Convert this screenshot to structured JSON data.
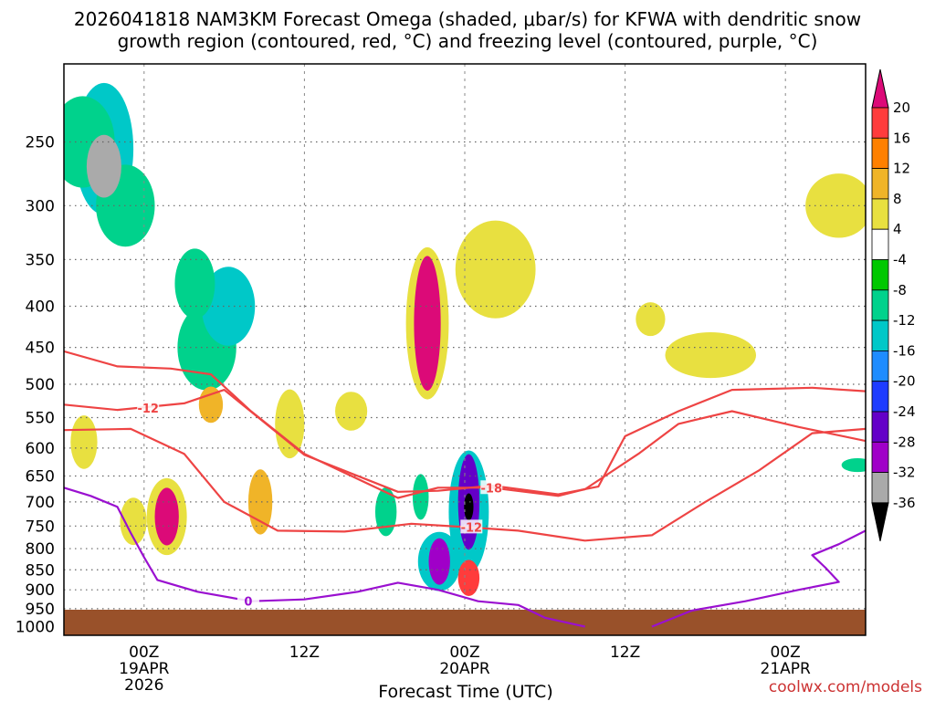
{
  "chart_data": {
    "type": "heatmap",
    "title_line1": "2026041818 NAM3KM Forecast Omega (shaded, μbar/s) for KFWA with dendritic snow",
    "title_line2": "growth region (contoured, red, °C) and freezing level (contoured, purple, °C)",
    "xlabel": "Forecast Time (UTC)",
    "credit": "coolwx.com/models",
    "x_range_hours": [
      -6,
      54
    ],
    "x_ticks": [
      {
        "hour": 0,
        "lines": [
          "00Z",
          "19APR",
          "2026"
        ]
      },
      {
        "hour": 12,
        "lines": [
          "12Z"
        ]
      },
      {
        "hour": 24,
        "lines": [
          "00Z",
          "20APR"
        ]
      },
      {
        "hour": 36,
        "lines": [
          "12Z"
        ]
      },
      {
        "hour": 48,
        "lines": [
          "00Z",
          "21APR"
        ]
      }
    ],
    "y_range_mb": [
      200,
      1025
    ],
    "y_ticks": [
      "250",
      "300",
      "350",
      "400",
      "450",
      "500",
      "550",
      "600",
      "650",
      "700",
      "750",
      "800",
      "850",
      "900",
      "950",
      "1000"
    ],
    "colorbar": {
      "labels": [
        "20",
        "16",
        "12",
        "8",
        "4",
        "-4",
        "-8",
        "-12",
        "-16",
        "-20",
        "-24",
        "-28",
        "-32",
        "-36"
      ],
      "colors": [
        "#ff3c3c",
        "#ff8000",
        "#f0b428",
        "#e8e040",
        "#ffffff",
        "#00c800",
        "#00d28c",
        "#00c8c8",
        "#1e8cff",
        "#1e3cff",
        "#6400c8",
        "#a000c8",
        "#aaaaaa"
      ],
      "top_color": "#dc0a78",
      "bottom_color": "#000000"
    },
    "omega_fields": [
      {
        "t": -3,
        "p": 268,
        "wt": 1.3,
        "wp": 48,
        "v": -32
      },
      {
        "t": -3,
        "p": 255,
        "wt": 2.2,
        "wp": 95,
        "v": -12
      },
      {
        "t": -4.6,
        "p": 250,
        "wt": 2.4,
        "wp": 65,
        "v": -8
      },
      {
        "t": -1.4,
        "p": 300,
        "wt": 2.2,
        "wp": 70,
        "v": -8
      },
      {
        "t": 4.7,
        "p": 450,
        "wt": 2.2,
        "wp": 110,
        "v": -8
      },
      {
        "t": 6.3,
        "p": 400,
        "wt": 2.0,
        "wp": 90,
        "v": -12
      },
      {
        "t": 3.8,
        "p": 375,
        "wt": 1.5,
        "wp": 75,
        "v": -8
      },
      {
        "t": 22.1,
        "p": 830,
        "wt": 0.8,
        "wp": 110,
        "v": -28
      },
      {
        "t": 22.1,
        "p": 830,
        "wt": 1.6,
        "wp": 140,
        "v": -12
      },
      {
        "t": 24.3,
        "p": 710,
        "wt": 0.35,
        "wp": 55,
        "v": -36
      },
      {
        "t": 24.3,
        "p": 700,
        "wt": 0.8,
        "wp": 190,
        "v": -24
      },
      {
        "t": 24.3,
        "p": 720,
        "wt": 1.5,
        "wp": 250,
        "v": -12
      },
      {
        "t": 21.2,
        "p": 420,
        "wt": 1.0,
        "wp": 160,
        "v": 20
      },
      {
        "t": 21.2,
        "p": 420,
        "wt": 1.6,
        "wp": 180,
        "v": 6
      },
      {
        "t": 1.7,
        "p": 730,
        "wt": 0.9,
        "wp": 120,
        "v": 20
      },
      {
        "t": 1.7,
        "p": 730,
        "wt": 1.5,
        "wp": 160,
        "v": 6
      },
      {
        "t": 24.3,
        "p": 870,
        "wt": 0.8,
        "wp": 90,
        "v": 16
      },
      {
        "t": 26.3,
        "p": 360,
        "wt": 3.0,
        "wp": 100,
        "v": 6
      },
      {
        "t": 42.4,
        "p": 460,
        "wt": 3.4,
        "wp": 60,
        "v": 6
      },
      {
        "t": 8.7,
        "p": 700,
        "wt": 0.9,
        "wp": 130,
        "v": 10
      },
      {
        "t": 52.0,
        "p": 300,
        "wt": 2.5,
        "wp": 55,
        "v": 6
      },
      {
        "t": 10.9,
        "p": 560,
        "wt": 1.1,
        "wp": 110,
        "v": 6
      },
      {
        "t": 15.5,
        "p": 540,
        "wt": 1.2,
        "wp": 60,
        "v": 6
      },
      {
        "t": 37.9,
        "p": 415,
        "wt": 1.1,
        "wp": 40,
        "v": 6
      },
      {
        "t": -4.5,
        "p": 590,
        "wt": 1.0,
        "wp": 90,
        "v": 6
      },
      {
        "t": -0.8,
        "p": 740,
        "wt": 1.0,
        "wp": 100,
        "v": 6
      },
      {
        "t": 5.0,
        "p": 530,
        "wt": 0.9,
        "wp": 55,
        "v": 10
      },
      {
        "t": 53.4,
        "p": 630,
        "wt": 1.2,
        "wp": 25,
        "v": -8
      },
      {
        "t": 20.7,
        "p": 690,
        "wt": 0.6,
        "wp": 90,
        "v": -8
      },
      {
        "t": 18.1,
        "p": 720,
        "wt": 0.8,
        "wp": 100,
        "v": -8
      }
    ],
    "dgz_contours": [
      {
        "label": "-12",
        "label_at": [
          0.3,
          535
        ],
        "points": [
          [
            -6,
            530
          ],
          [
            -2,
            538
          ],
          [
            3,
            528
          ],
          [
            6,
            508
          ],
          [
            12,
            612
          ],
          [
            19,
            680
          ],
          [
            22,
            678
          ],
          [
            26,
            668
          ],
          [
            31,
            685
          ],
          [
            34,
            670
          ],
          [
            36,
            580
          ],
          [
            40,
            540
          ],
          [
            44,
            508
          ],
          [
            50,
            505
          ],
          [
            54,
            510
          ]
        ]
      },
      {
        "label": "-18",
        "label_at": [
          26,
          672
        ],
        "points": [
          [
            -6,
            455
          ],
          [
            -2,
            475
          ],
          [
            2,
            478
          ],
          [
            5,
            486
          ],
          [
            8,
            540
          ],
          [
            12,
            610
          ],
          [
            19,
            692
          ],
          [
            22,
            672
          ],
          [
            26,
            672
          ],
          [
            31,
            688
          ],
          [
            33,
            675
          ],
          [
            37,
            610
          ],
          [
            40,
            560
          ],
          [
            44,
            540
          ],
          [
            49,
            565
          ],
          [
            54,
            588
          ]
        ]
      },
      {
        "label": "-12",
        "label_at": [
          24.5,
          752
        ],
        "points": [
          [
            -6,
            570
          ],
          [
            -1,
            568
          ],
          [
            3,
            610
          ],
          [
            6,
            700
          ],
          [
            10,
            760
          ],
          [
            15,
            762
          ],
          [
            20,
            745
          ],
          [
            24,
            752
          ],
          [
            28,
            760
          ],
          [
            33,
            782
          ],
          [
            38,
            770
          ],
          [
            42,
            700
          ],
          [
            46,
            640
          ],
          [
            50,
            575
          ],
          [
            54,
            568
          ]
        ]
      }
    ],
    "freezing_contours": [
      {
        "label": "0",
        "label_at": [
          7.8,
          930
        ],
        "points": [
          [
            -6,
            672
          ],
          [
            -4,
            688
          ],
          [
            -2,
            710
          ],
          [
            -1,
            765
          ],
          [
            0,
            820
          ],
          [
            1,
            875
          ],
          [
            4,
            905
          ],
          [
            8,
            930
          ],
          [
            12,
            925
          ],
          [
            16,
            905
          ],
          [
            19,
            882
          ],
          [
            22,
            900
          ],
          [
            25,
            930
          ],
          [
            28,
            940
          ],
          [
            30,
            975
          ],
          [
            33,
            1000
          ]
        ]
      },
      {
        "label": "",
        "label_at": null,
        "points": [
          [
            38,
            1000
          ],
          [
            41,
            955
          ],
          [
            45,
            930
          ],
          [
            49,
            900
          ],
          [
            52,
            880
          ],
          [
            51,
            845
          ],
          [
            50,
            815
          ],
          [
            52,
            790
          ],
          [
            54,
            760
          ]
        ]
      }
    ]
  }
}
